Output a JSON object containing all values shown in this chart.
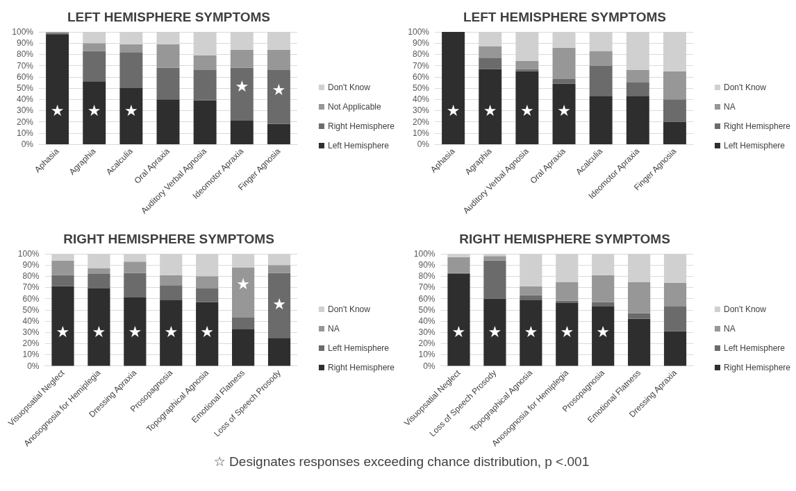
{
  "chart_data": [
    {
      "type": "bar",
      "stacked": true,
      "title": "LEFT HEMISPHERE SYMPTOMS",
      "categories": [
        "Aphasia",
        "Agraphia",
        "Acalculia",
        "Oral Apraxia",
        "Auditory Verbal Agnosia",
        "Ideomotor Apraxia",
        "Finger Agnosia"
      ],
      "series": [
        {
          "name": "Left Hemisphere",
          "color": "#2e2e2e",
          "values": [
            98,
            56,
            50,
            40,
            39,
            21,
            18
          ],
          "value_labels": [
            "★",
            "★",
            "★",
            null,
            null,
            null,
            null
          ]
        },
        {
          "name": "Right Hemisphere",
          "color": "#6b6b6b",
          "values": [
            1,
            27,
            32,
            28,
            27,
            47,
            48
          ],
          "value_labels": [
            null,
            null,
            null,
            null,
            null,
            "★",
            "★"
          ]
        },
        {
          "name": "Not Applicable",
          "color": "#979797",
          "values": [
            1,
            7,
            7,
            21,
            13,
            16,
            18
          ]
        },
        {
          "name": "Don't Know",
          "color": "#d0d0d0",
          "values": [
            0,
            10,
            11,
            11,
            21,
            16,
            16
          ]
        }
      ],
      "ylim": [
        0,
        100
      ],
      "yticks": [
        {
          "value": 0,
          "label": "0%"
        },
        {
          "value": 10,
          "label": "10%"
        },
        {
          "value": 20,
          "label": "20%"
        },
        {
          "value": 30,
          "label": "30%"
        },
        {
          "value": 40,
          "label": "40%"
        },
        {
          "value": 50,
          "label": "50%"
        },
        {
          "value": 60,
          "label": "60%"
        },
        {
          "value": 70,
          "label": "70%"
        },
        {
          "value": 80,
          "label": "80%"
        },
        {
          "value": 90,
          "label": "90%"
        },
        {
          "value": 100,
          "label": "100%"
        }
      ],
      "grid": "y",
      "legend": "right"
    },
    {
      "type": "bar",
      "stacked": true,
      "title": "LEFT HEMISPHERE SYMPTOMS",
      "categories": [
        "Aphasia",
        "Agraphia",
        "Auditory Verbal Agnosia",
        "Oral Apraxia",
        "Acalculia",
        "Ideomotor Apraxia",
        "Finger Agnosia"
      ],
      "series": [
        {
          "name": "Left Hemisphere",
          "color": "#2e2e2e",
          "values": [
            100,
            67,
            65,
            54,
            43,
            43,
            20
          ],
          "value_labels": [
            "★",
            "★",
            "★",
            "★",
            null,
            null,
            null
          ]
        },
        {
          "name": "Right Hemisphere",
          "color": "#6b6b6b",
          "values": [
            0,
            10,
            2,
            4,
            27,
            12,
            20
          ]
        },
        {
          "name": "NA",
          "color": "#979797",
          "values": [
            0,
            10,
            7,
            28,
            13,
            11,
            25
          ]
        },
        {
          "name": "Don't Know",
          "color": "#d0d0d0",
          "values": [
            0,
            13,
            26,
            14,
            17,
            34,
            35
          ]
        }
      ],
      "ylim": [
        0,
        100
      ],
      "yticks": [
        {
          "value": 0,
          "label": "0%"
        },
        {
          "value": 10,
          "label": "10%"
        },
        {
          "value": 20,
          "label": "20%"
        },
        {
          "value": 30,
          "label": "30%"
        },
        {
          "value": 40,
          "label": "40%"
        },
        {
          "value": 50,
          "label": "50%"
        },
        {
          "value": 60,
          "label": "60%"
        },
        {
          "value": 70,
          "label": "70%"
        },
        {
          "value": 80,
          "label": "80%"
        },
        {
          "value": 90,
          "label": "90%"
        },
        {
          "value": 100,
          "label": "100%"
        }
      ],
      "grid": "y",
      "legend": "right"
    },
    {
      "type": "bar",
      "stacked": true,
      "title": "RIGHT HEMISPHERE SYMPTOMS",
      "categories": [
        "Visuopsatial Neglect",
        "Anosognosia for Hemiplegia",
        "Dressing Apraxia",
        "Prosopagnosia",
        "Topographical Agnosia",
        "Emotional Flatness",
        "Loss of Speech Prosody"
      ],
      "series": [
        {
          "name": "Right Hemisphere",
          "color": "#2e2e2e",
          "values": [
            71,
            69,
            61,
            59,
            57,
            33,
            25
          ],
          "value_labels": [
            "★",
            "★",
            "★",
            "★",
            "★",
            null,
            null
          ]
        },
        {
          "name": "Left Hemisphere",
          "color": "#6b6b6b",
          "values": [
            10,
            13,
            22,
            13,
            12,
            10,
            58
          ],
          "value_labels": [
            null,
            null,
            null,
            null,
            null,
            null,
            "★"
          ]
        },
        {
          "name": "NA",
          "color": "#979797",
          "values": [
            13,
            5,
            10,
            9,
            11,
            45,
            7
          ],
          "value_labels": [
            null,
            null,
            null,
            null,
            null,
            "★",
            null
          ]
        },
        {
          "name": "Don't Know",
          "color": "#d0d0d0",
          "values": [
            6,
            13,
            7,
            19,
            20,
            12,
            10
          ]
        }
      ],
      "ylim": [
        0,
        100
      ],
      "yticks": [
        {
          "value": 0,
          "label": "0%"
        },
        {
          "value": 10,
          "label": "10%"
        },
        {
          "value": 20,
          "label": "20%"
        },
        {
          "value": 30,
          "label": "30%"
        },
        {
          "value": 40,
          "label": "40%"
        },
        {
          "value": 50,
          "label": "50%"
        },
        {
          "value": 60,
          "label": "60%"
        },
        {
          "value": 70,
          "label": "70%"
        },
        {
          "value": 80,
          "label": "80%"
        },
        {
          "value": 90,
          "label": "90%"
        },
        {
          "value": 100,
          "label": "100%"
        }
      ],
      "grid": "y",
      "legend": "right"
    },
    {
      "type": "bar",
      "stacked": true,
      "title": "RIGHT HEMISPHERE SYMPTOMS",
      "categories": [
        "Visuopsatial Neglect",
        "Loss of Speech Prosody",
        "Topographical Agnosia",
        "Anosognosia for Hemiplegia",
        "Prosopagnosia",
        "Emotional Flatness",
        "Dressing Apraxia"
      ],
      "series": [
        {
          "name": "Right Hemisphere",
          "color": "#2e2e2e",
          "values": [
            82,
            60,
            59,
            56,
            53,
            42,
            31
          ],
          "value_labels": [
            "★",
            "★",
            "★",
            "★",
            "★",
            null,
            null
          ]
        },
        {
          "name": "Left Hemisphere",
          "color": "#6b6b6b",
          "values": [
            1,
            34,
            4,
            2,
            4,
            5,
            22
          ]
        },
        {
          "name": "NA",
          "color": "#979797",
          "values": [
            14,
            4,
            8,
            17,
            24,
            28,
            21
          ]
        },
        {
          "name": "Don't Know",
          "color": "#d0d0d0",
          "values": [
            3,
            2,
            29,
            25,
            19,
            25,
            26
          ]
        }
      ],
      "ylim": [
        0,
        100
      ],
      "yticks": [
        {
          "value": 0,
          "label": "0%"
        },
        {
          "value": 10,
          "label": "10%"
        },
        {
          "value": 20,
          "label": "20%"
        },
        {
          "value": 30,
          "label": "30%"
        },
        {
          "value": 40,
          "label": "40%"
        },
        {
          "value": 50,
          "label": "50%"
        },
        {
          "value": 60,
          "label": "60%"
        },
        {
          "value": 70,
          "label": "70%"
        },
        {
          "value": 80,
          "label": "80%"
        },
        {
          "value": 90,
          "label": "90%"
        },
        {
          "value": 100,
          "label": "100%"
        }
      ],
      "grid": "y",
      "legend": "right",
      "annotations": [
        "☆  Designates responses exceeding chance distribution, p <.001"
      ]
    }
  ]
}
